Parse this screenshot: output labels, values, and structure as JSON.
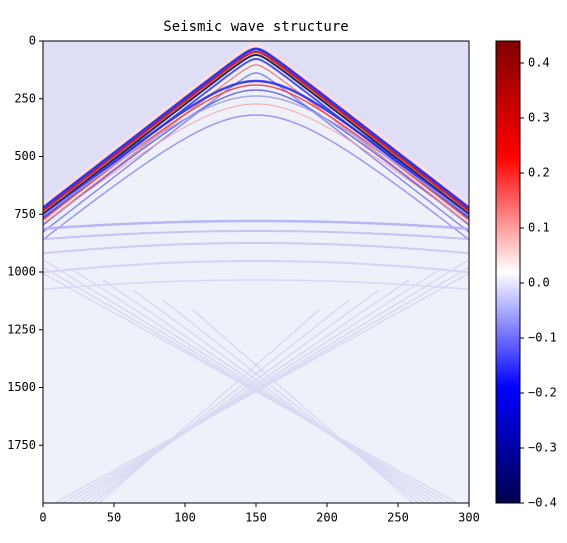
{
  "chart_data": {
    "type": "heatmap",
    "title": "Seismic wave structure",
    "xlim": [
      0,
      300
    ],
    "xticks": [
      0,
      50,
      100,
      150,
      200,
      250,
      300
    ],
    "ylim": [
      2000,
      0
    ],
    "yticks": [
      0,
      250,
      500,
      750,
      1000,
      1250,
      1500,
      1750
    ],
    "colormap": "seismic",
    "clim": [
      -0.4,
      0.44
    ],
    "cticks": [
      {
        "value": -0.4,
        "label": "−0.4"
      },
      {
        "value": -0.3,
        "label": "−0.3"
      },
      {
        "value": -0.2,
        "label": "−0.2"
      },
      {
        "value": -0.1,
        "label": "−0.1"
      },
      {
        "value": 0,
        "label": "0.0"
      },
      0.1,
      0.2,
      0.3,
      0.4
    ]
  }
}
